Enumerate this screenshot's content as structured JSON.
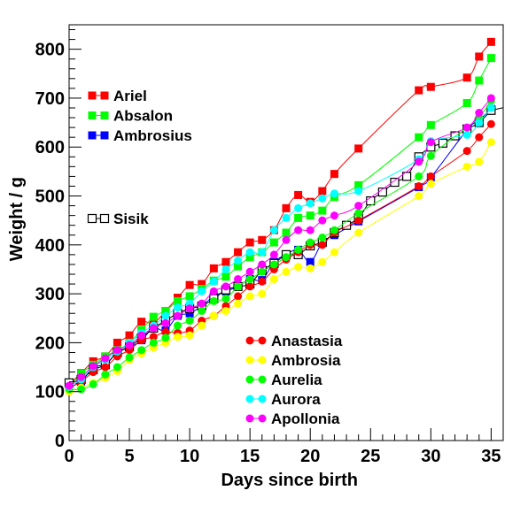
{
  "chart_data": {
    "type": "line",
    "title": "",
    "xlabel": "Days since birth",
    "ylabel": "Weight / g",
    "xlim": [
      0,
      36
    ],
    "ylim": [
      0,
      850
    ],
    "xticks": [
      0,
      5,
      10,
      15,
      20,
      25,
      30,
      35
    ],
    "yticks": [
      0,
      100,
      200,
      300,
      400,
      500,
      600,
      700,
      800
    ],
    "grid": false,
    "legends": [
      {
        "placement": "top-left",
        "entries": [
          "Ariel",
          "Absalon",
          "Ambrosius"
        ]
      },
      {
        "placement": "middle-left",
        "entries": [
          "Sisik"
        ]
      },
      {
        "placement": "bottom-center",
        "entries": [
          "Anastasia",
          "Ambrosia",
          "Aurelia",
          "Aurora",
          "Apollonia"
        ]
      }
    ],
    "series": [
      {
        "name": "Ariel",
        "color": "#ff0000",
        "marker": "square",
        "x": [
          0,
          1,
          2,
          3,
          4,
          5,
          6,
          7,
          8,
          9,
          10,
          11,
          12,
          13,
          14,
          15,
          16,
          17,
          18,
          19,
          20,
          21,
          22,
          24,
          29,
          30,
          33,
          34,
          35
        ],
        "y": [
          115,
          138,
          162,
          172,
          200,
          215,
          243,
          240,
          265,
          292,
          318,
          320,
          352,
          365,
          385,
          405,
          410,
          430,
          475,
          502,
          488,
          510,
          545,
          597,
          716,
          723,
          742,
          785,
          815
        ]
      },
      {
        "name": "Absalon",
        "color": "#00ff00",
        "marker": "square",
        "x": [
          0,
          1,
          2,
          3,
          4,
          5,
          6,
          7,
          8,
          9,
          10,
          11,
          12,
          13,
          14,
          15,
          16,
          17,
          18,
          19,
          20,
          21,
          22,
          24,
          29,
          30,
          33,
          34,
          35
        ],
        "y": [
          110,
          137,
          155,
          172,
          185,
          200,
          226,
          253,
          265,
          285,
          295,
          310,
          327,
          335,
          356,
          375,
          385,
          405,
          425,
          455,
          460,
          470,
          498,
          522,
          620,
          645,
          690,
          736,
          782
        ]
      },
      {
        "name": "Ambrosius",
        "color": "#0000ff",
        "marker": "square",
        "x": [
          0,
          1,
          2,
          3,
          4,
          5,
          6,
          7,
          8,
          9,
          10,
          11,
          12,
          13,
          14,
          15,
          16,
          17,
          18,
          19,
          20,
          21,
          22,
          24,
          29,
          30,
          33,
          34,
          35
        ],
        "y": [
          115,
          120,
          150,
          155,
          180,
          190,
          205,
          230,
          225,
          255,
          260,
          275,
          295,
          305,
          315,
          330,
          328,
          365,
          380,
          390,
          365,
          405,
          420,
          448,
          518,
          538,
          635,
          655,
          678
        ]
      },
      {
        "name": "Sisik",
        "color": "#000000",
        "marker": "open-square",
        "x": [
          0,
          1,
          2,
          3,
          4,
          5,
          6,
          7,
          8,
          9,
          10,
          11,
          12,
          13,
          14,
          15,
          16,
          17,
          18,
          19,
          20,
          21,
          22,
          23,
          24,
          25,
          26,
          27,
          28,
          29,
          30,
          31,
          32,
          33,
          34,
          35
        ],
        "y": [
          118,
          125,
          145,
          155,
          180,
          192,
          210,
          230,
          245,
          260,
          270,
          275,
          290,
          308,
          315,
          320,
          348,
          362,
          380,
          380,
          398,
          405,
          425,
          440,
          455,
          490,
          508,
          528,
          540,
          580,
          600,
          608,
          623,
          637,
          650,
          675
        ]
      },
      {
        "name": "Anastasia",
        "color": "#ff0000",
        "marker": "circle",
        "x": [
          0,
          1,
          2,
          3,
          4,
          5,
          6,
          7,
          8,
          9,
          10,
          11,
          12,
          13,
          14,
          15,
          16,
          17,
          18,
          19,
          20,
          21,
          22,
          24,
          29,
          30,
          33,
          34,
          35
        ],
        "y": [
          108,
          120,
          140,
          150,
          172,
          185,
          205,
          212,
          222,
          220,
          225,
          245,
          255,
          275,
          295,
          315,
          325,
          350,
          370,
          385,
          400,
          400,
          425,
          450,
          520,
          540,
          592,
          620,
          647
        ]
      },
      {
        "name": "Ambrosia",
        "color": "#ffff00",
        "marker": "circle",
        "x": [
          0,
          1,
          2,
          3,
          4,
          5,
          6,
          7,
          8,
          9,
          10,
          11,
          12,
          13,
          14,
          15,
          16,
          17,
          18,
          19,
          20,
          21,
          22,
          24,
          29,
          30,
          33,
          34,
          35
        ],
        "y": [
          100,
          108,
          118,
          128,
          142,
          165,
          178,
          190,
          200,
          212,
          215,
          235,
          255,
          265,
          280,
          295,
          300,
          330,
          345,
          355,
          352,
          365,
          385,
          425,
          500,
          525,
          560,
          570,
          610
        ]
      },
      {
        "name": "Aurelia",
        "color": "#00ff00",
        "marker": "circle",
        "x": [
          0,
          1,
          2,
          3,
          4,
          5,
          6,
          7,
          8,
          9,
          10,
          11,
          12,
          13,
          14,
          15,
          16,
          17,
          18,
          19,
          20,
          21,
          22,
          24,
          29,
          30,
          33,
          34,
          35
        ],
        "y": [
          105,
          105,
          115,
          135,
          150,
          170,
          185,
          200,
          210,
          235,
          245,
          265,
          285,
          290,
          315,
          330,
          345,
          360,
          375,
          390,
          405,
          415,
          430,
          465,
          540,
          582,
          640,
          660,
          695
        ]
      },
      {
        "name": "Aurora",
        "color": "#00ffff",
        "marker": "circle",
        "x": [
          0,
          1,
          2,
          3,
          4,
          5,
          6,
          7,
          8,
          9,
          10,
          11,
          12,
          13,
          14,
          15,
          16,
          17,
          18,
          19,
          20,
          21,
          22,
          24,
          29,
          30,
          33,
          34,
          35
        ],
        "y": [
          110,
          125,
          150,
          165,
          182,
          200,
          220,
          235,
          255,
          272,
          280,
          305,
          325,
          350,
          368,
          385,
          385,
          430,
          455,
          475,
          485,
          495,
          505,
          510,
          575,
          612,
          625,
          650,
          680
        ]
      },
      {
        "name": "Apollonia",
        "color": "#ff00ff",
        "marker": "circle",
        "x": [
          0,
          1,
          2,
          3,
          4,
          5,
          6,
          7,
          8,
          9,
          10,
          11,
          12,
          13,
          14,
          15,
          16,
          17,
          18,
          19,
          20,
          21,
          22,
          24,
          29,
          30,
          33,
          34,
          35
        ],
        "y": [
          112,
          130,
          152,
          168,
          185,
          195,
          215,
          230,
          240,
          255,
          270,
          280,
          305,
          315,
          330,
          345,
          360,
          380,
          410,
          430,
          430,
          450,
          460,
          480,
          570,
          610,
          640,
          670,
          700
        ]
      }
    ]
  }
}
